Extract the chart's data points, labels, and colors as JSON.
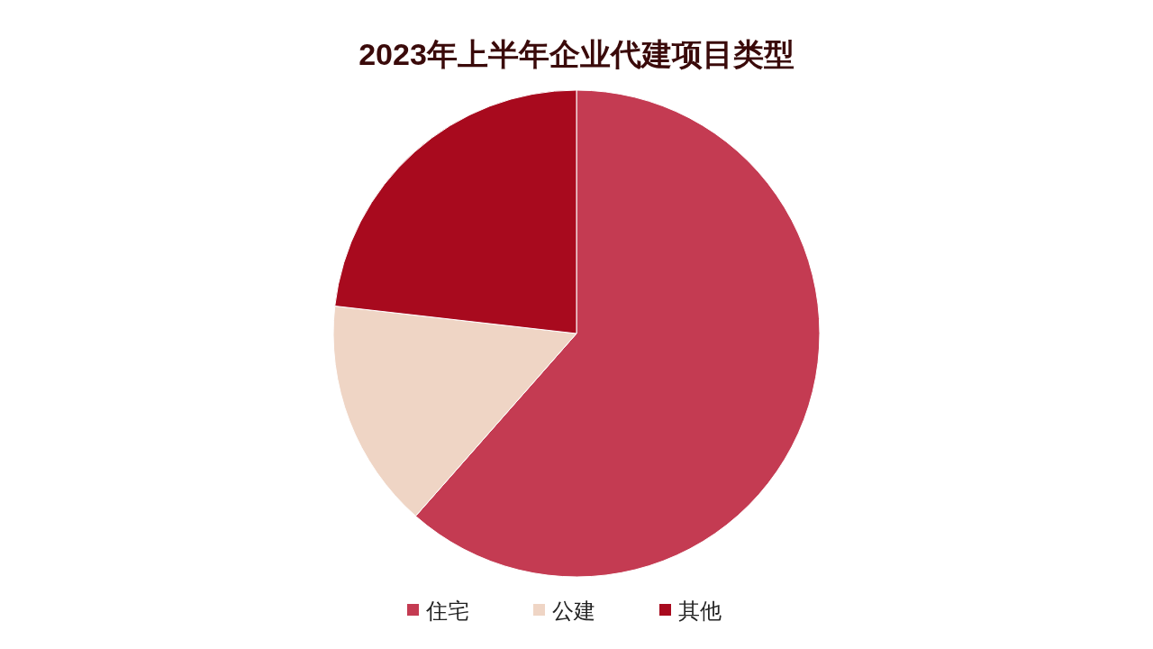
{
  "chart_data": {
    "type": "pie",
    "title": "2023年上半年企业代建项目类型",
    "categories": [
      "住宅",
      "公建",
      "其他"
    ],
    "values": [
      61.5,
      15.3,
      23.2
    ],
    "colors": [
      "#c43b52",
      "#efd5c5",
      "#a80a1e"
    ],
    "legend": "bottom"
  }
}
